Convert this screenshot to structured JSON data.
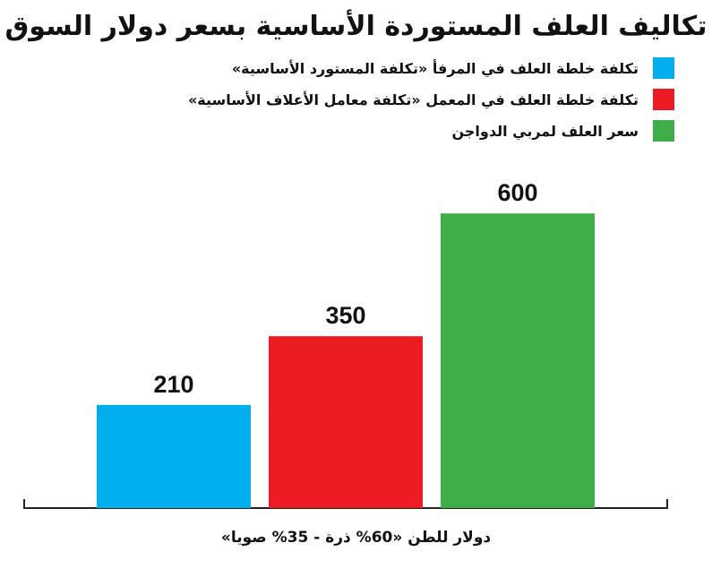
{
  "chart_data": {
    "type": "bar",
    "title": "تكاليف العلف المستوردة الأساسية بسعر دولار السوق",
    "xlabel": "دولار للطن «60% ذرة - 35% صويا»",
    "ylabel": "",
    "ylim": [
      0,
      700
    ],
    "grid": false,
    "legend_position": "top-right",
    "categories": [
      "تكلفة خلطة العلف في المرفأ «تكلفة المستورد الأساسية»",
      "تكلفة خلطة العلف في المعمل «تكلفة معامل الأعلاف الأساسية»",
      "سعر العلف لمربي الدواجن"
    ],
    "values": [
      210,
      350,
      600
    ],
    "colors": [
      "#00aeef",
      "#ed1c24",
      "#3fae49"
    ]
  }
}
